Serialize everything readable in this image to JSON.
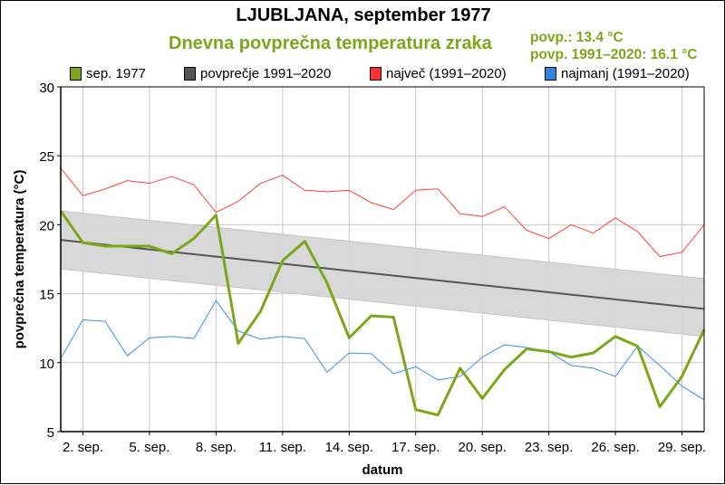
{
  "header": {
    "title": "LJUBLJANA, september 1977",
    "subtitle": "Dnevna povprečna temperatura zraka",
    "stat_mean": "povp.: 13.4 °C",
    "stat_normal": "povp. 1991–2020: 16.1 °C"
  },
  "colors": {
    "month": "#7ea61a",
    "normal": "#555555",
    "band": "#d6d6d6",
    "max": "#ff4040",
    "min": "#3a93e6"
  },
  "chart_data": {
    "type": "line",
    "xlabel": "datum",
    "ylabel": "povprečna temperatura (°C)",
    "ylim": [
      5,
      30
    ],
    "xlim": [
      1,
      30
    ],
    "grid": true,
    "legend_position": "top",
    "y_ticks": [
      "5",
      "10",
      "15",
      "20",
      "25",
      "30"
    ],
    "y_tick_values": [
      5,
      10,
      15,
      20,
      25,
      30
    ],
    "x_ticks": [
      "2. sep.",
      "5. sep.",
      "8. sep.",
      "11. sep.",
      "14. sep.",
      "17. sep.",
      "20. sep.",
      "23. sep.",
      "26. sep.",
      "29. sep."
    ],
    "x_tick_days": [
      2,
      5,
      8,
      11,
      14,
      17,
      20,
      23,
      26,
      29
    ],
    "days": [
      1,
      2,
      3,
      4,
      5,
      6,
      7,
      8,
      9,
      10,
      11,
      12,
      13,
      14,
      15,
      16,
      17,
      18,
      19,
      20,
      21,
      22,
      23,
      24,
      25,
      26,
      27,
      28,
      29,
      30
    ],
    "series": [
      {
        "name": "sep. 1977",
        "key": "month",
        "values": [
          21.0,
          18.7,
          18.45,
          18.45,
          18.45,
          17.9,
          19.0,
          20.7,
          11.4,
          13.7,
          17.4,
          18.8,
          15.8,
          11.8,
          13.4,
          13.3,
          6.6,
          6.2,
          9.6,
          7.4,
          9.5,
          11.0,
          10.8,
          10.4,
          10.7,
          11.9,
          11.2,
          6.8,
          9.0,
          12.4
        ]
      },
      {
        "name": "povprečje 1991–2020",
        "key": "normal",
        "values_start_end": [
          18.9,
          13.9
        ],
        "band_upper_start_end": [
          21.0,
          16.1
        ],
        "band_lower_start_end": [
          16.8,
          11.9
        ]
      },
      {
        "name": "največ (1991–2020)",
        "key": "max",
        "values": [
          24.1,
          22.1,
          22.6,
          23.2,
          23.0,
          23.5,
          22.9,
          20.9,
          21.7,
          23.0,
          23.6,
          22.5,
          22.4,
          22.5,
          21.6,
          21.1,
          22.5,
          22.6,
          20.8,
          20.6,
          21.3,
          19.6,
          19.0,
          20.0,
          19.4,
          20.5,
          19.5,
          17.7,
          18.0,
          20.0
        ]
      },
      {
        "name": "najmanj (1991–2020)",
        "key": "min",
        "values": [
          10.3,
          13.1,
          13.0,
          10.5,
          11.8,
          11.9,
          11.75,
          14.5,
          12.3,
          11.7,
          11.9,
          11.75,
          9.3,
          10.7,
          10.65,
          9.2,
          9.7,
          8.75,
          9.0,
          10.4,
          11.3,
          11.1,
          10.8,
          9.8,
          9.6,
          9.0,
          11.2,
          9.8,
          8.3,
          7.3
        ]
      }
    ]
  }
}
